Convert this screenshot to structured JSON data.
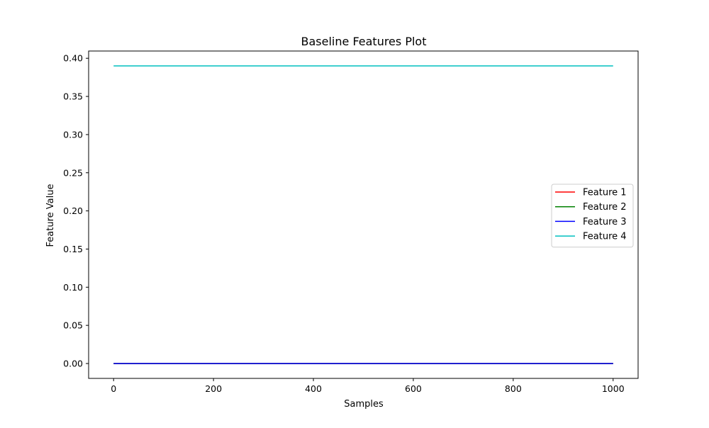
{
  "chart_data": {
    "type": "line",
    "title": "Baseline Features Plot",
    "xlabel": "Samples",
    "ylabel": "Feature Value",
    "xlim": [
      -50,
      1050
    ],
    "ylim": [
      -0.0195,
      0.4095
    ],
    "xticks": [
      0,
      200,
      400,
      600,
      800,
      1000
    ],
    "xtick_labels": [
      "0",
      "200",
      "400",
      "600",
      "800",
      "1000"
    ],
    "yticks": [
      0.0,
      0.05,
      0.1,
      0.15,
      0.2,
      0.25,
      0.3,
      0.35,
      0.4
    ],
    "ytick_labels": [
      "0.00",
      "0.05",
      "0.10",
      "0.15",
      "0.20",
      "0.25",
      "0.30",
      "0.35",
      "0.40"
    ],
    "grid": false,
    "legend_position": "center-right",
    "series": [
      {
        "name": "Feature 1",
        "color": "#ff0000",
        "x": [
          0,
          1000
        ],
        "y": [
          0.0,
          0.0
        ]
      },
      {
        "name": "Feature 2",
        "color": "#008000",
        "x": [
          0,
          1000
        ],
        "y": [
          0.0,
          0.0
        ]
      },
      {
        "name": "Feature 3",
        "color": "#0000ff",
        "x": [
          0,
          1000
        ],
        "y": [
          0.0,
          0.0
        ]
      },
      {
        "name": "Feature 4",
        "color": "#00bfbf",
        "x": [
          0,
          1000
        ],
        "y": [
          0.39,
          0.39
        ]
      }
    ]
  }
}
